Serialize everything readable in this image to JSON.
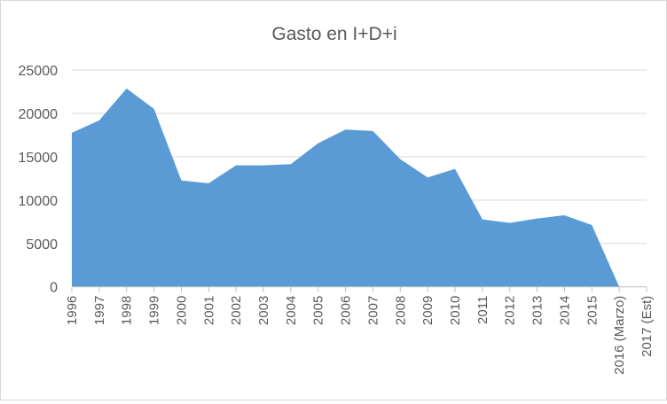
{
  "chart_data": {
    "type": "area",
    "title": "Gasto en I+D+i",
    "xlabel": "",
    "ylabel": "",
    "categories": [
      "1996",
      "1997",
      "1998",
      "1999",
      "2000",
      "2001",
      "2002",
      "2003",
      "2004",
      "2005",
      "2006",
      "2007",
      "2008",
      "2009",
      "2010",
      "2011",
      "2012",
      "2013",
      "2014",
      "2015",
      "2016 (Marzo)",
      "2017 (Est)"
    ],
    "values": [
      17760,
      19190,
      22870,
      20520,
      12270,
      11930,
      14010,
      14010,
      14140,
      16560,
      18130,
      17960,
      14720,
      12610,
      13600,
      7770,
      7360,
      7870,
      8250,
      7120,
      0,
      null
    ],
    "ylim": [
      0,
      25000
    ],
    "yticks": [
      "0",
      "5000",
      "10000",
      "15000",
      "20000",
      "25000"
    ],
    "grid": true,
    "legend": "none",
    "color": "#5b9bd5"
  }
}
